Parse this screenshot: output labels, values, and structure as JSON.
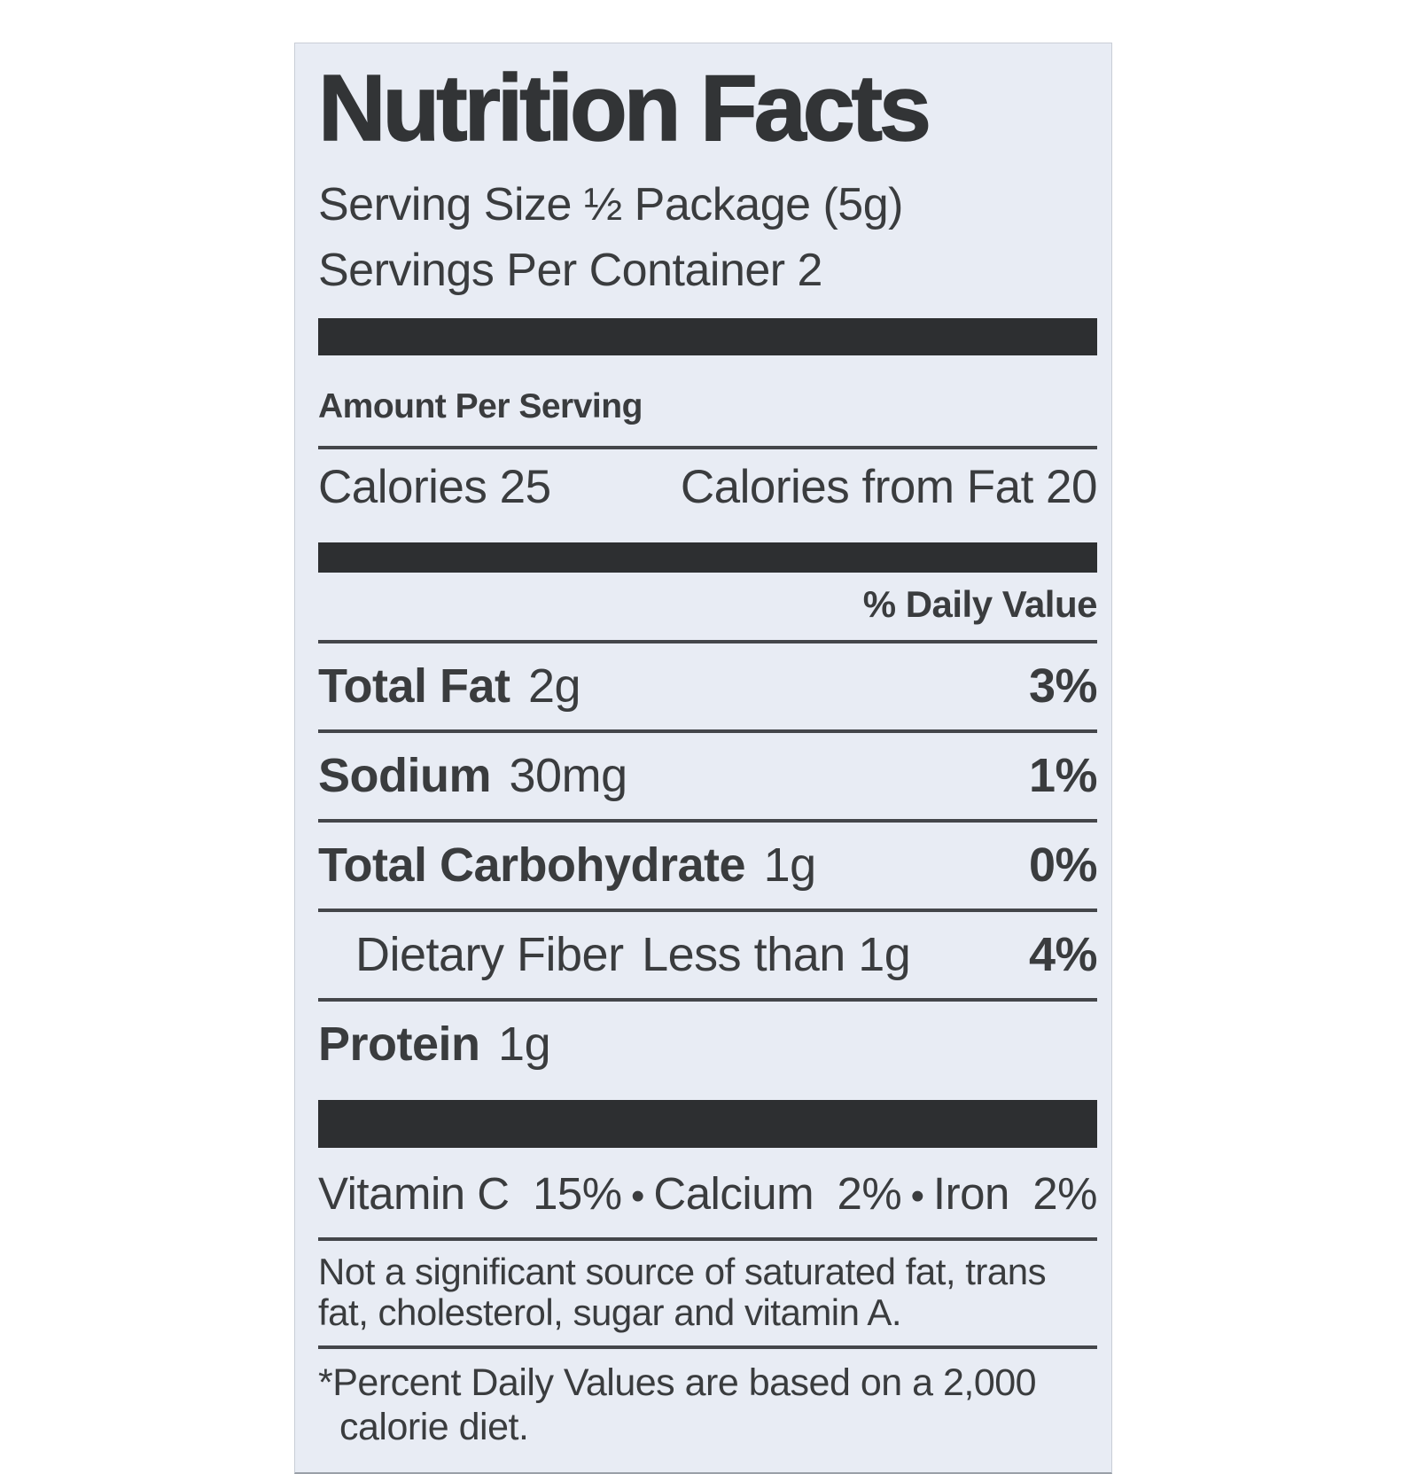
{
  "label": {
    "title": "Nutrition Facts",
    "serving_size": "Serving Size ½ Package (5g)",
    "servings_per_container": "Servings Per Container 2",
    "amount_per_serving": "Amount Per Serving",
    "calories": {
      "label": "Calories",
      "value": "25"
    },
    "calories_from_fat": {
      "label": "Calories from Fat",
      "value": "20"
    },
    "daily_value_header": "% Daily Value",
    "rows": [
      {
        "name": "Total Fat",
        "amount": "2g",
        "dv": "3%"
      },
      {
        "name": "Sodium",
        "amount": "30mg",
        "dv": "1%"
      },
      {
        "name": "Total Carbohydrate",
        "amount": "1g",
        "dv": "0%"
      },
      {
        "name": "Dietary Fiber",
        "amount": "Less than 1g",
        "dv": "4%"
      },
      {
        "name": "Protein",
        "amount": "1g",
        "dv": ""
      }
    ],
    "bullet": "•",
    "micronutrients": [
      {
        "name": "Vitamin C",
        "dv": "15%"
      },
      {
        "name": "Calcium",
        "dv": "2%"
      },
      {
        "name": "Iron",
        "dv": "2%"
      }
    ],
    "disclaimer": "Not a significant source of saturated fat, trans fat, cholesterol, sugar and vitamin A.",
    "footnote": "*Percent Daily Values are based on a 2,000 calorie diet."
  },
  "colors": {
    "label-bg": "#e8ecf4",
    "page-bg": "#ffffff",
    "ink": "#3a3c3e",
    "bar": "#2d2f31",
    "rule": "#44464a"
  }
}
